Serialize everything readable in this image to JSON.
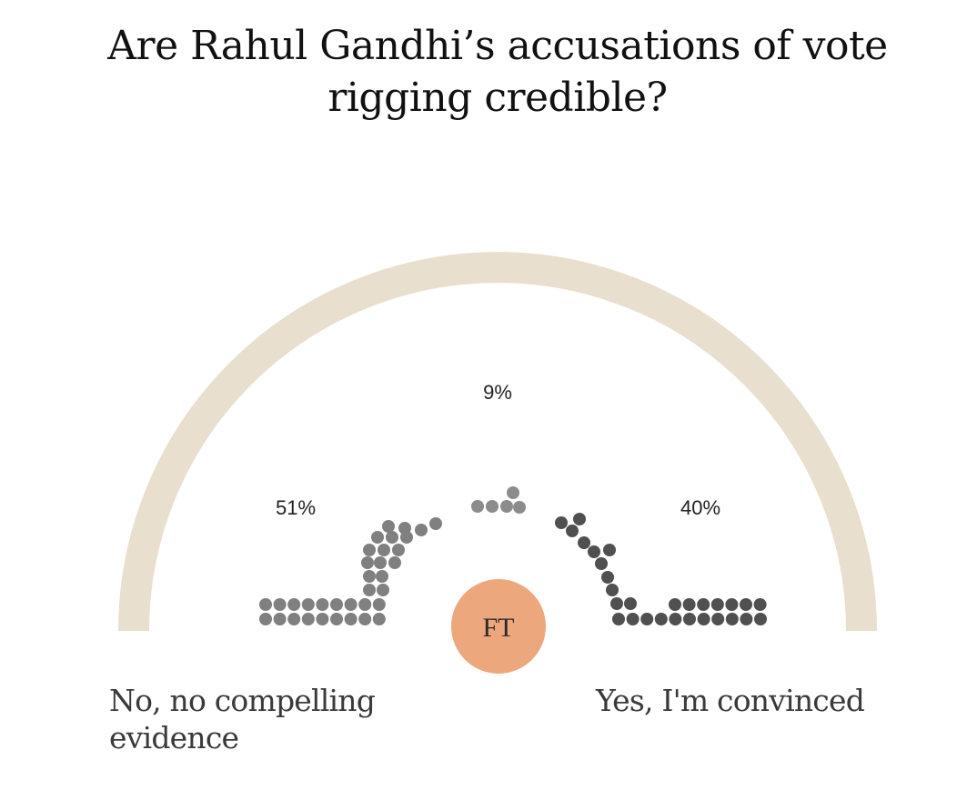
{
  "title": "Are Rahul Gandhi’s accusations of vote rigging credible?",
  "brand": {
    "logo_text": "FT",
    "color": "#EDA77C"
  },
  "colors": {
    "arc": "#E8DFCE",
    "dots_no": "#808080",
    "dots_middle": "#8C8C8C",
    "dots_yes": "#505050"
  },
  "chart_data": {
    "type": "parliament",
    "categories": [
      "No, no compelling evidence",
      "",
      "Yes, I'm convinced"
    ],
    "values": [
      51,
      9,
      40
    ],
    "value_labels": [
      "51%",
      "9%",
      "40%"
    ],
    "unit": "%",
    "axis_labels": {
      "left": "No, no compelling evidence",
      "right": "Yes, I'm convinced"
    }
  }
}
